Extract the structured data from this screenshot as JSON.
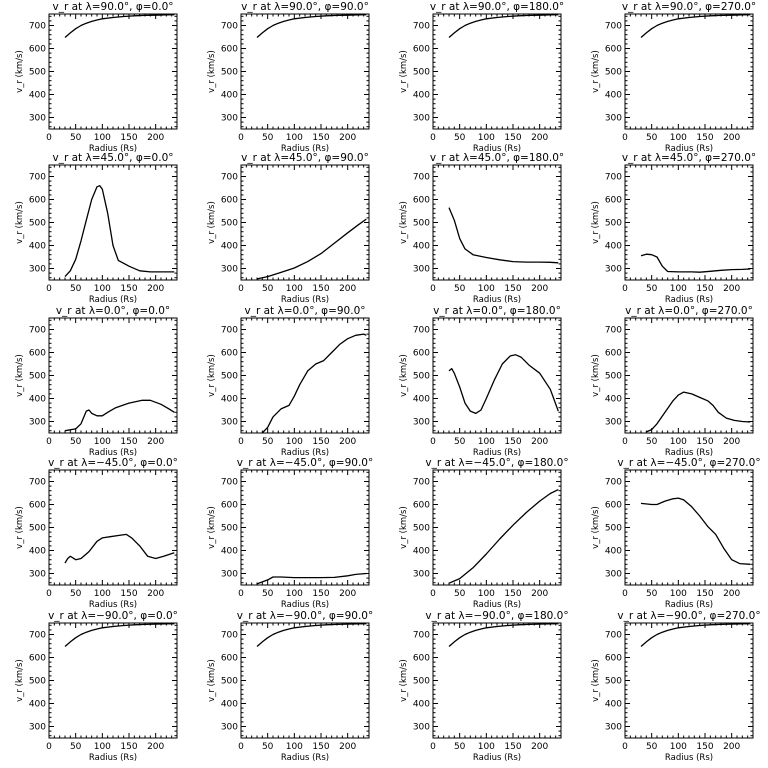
{
  "figure": {
    "layout": {
      "rows": 5,
      "cols": 4
    },
    "line_color": "#000000",
    "background": "#ffffff"
  },
  "chart_data": [
    {
      "type": "line",
      "title": "v_r at λ=90.0°, φ=0.0°",
      "xlabel": "Radius (Rs)",
      "ylabel": "v_r (km/s)",
      "xlim": [
        0,
        240
      ],
      "ylim": [
        250,
        750
      ],
      "xticks": [
        0,
        50,
        100,
        150,
        200
      ],
      "yticks": [
        300,
        400,
        500,
        600,
        700
      ],
      "x": [
        30,
        40,
        50,
        60,
        70,
        80,
        90,
        100,
        120,
        140,
        160,
        180,
        200,
        220,
        235
      ],
      "y": [
        648,
        668,
        686,
        700,
        710,
        718,
        724,
        729,
        735,
        739,
        742,
        744,
        745,
        746,
        747
      ]
    },
    {
      "type": "line",
      "title": "v_r at λ=90.0°, φ=90.0°",
      "xlabel": "Radius (Rs)",
      "ylabel": "v_r (km/s)",
      "xlim": [
        0,
        240
      ],
      "ylim": [
        250,
        750
      ],
      "xticks": [
        0,
        50,
        100,
        150,
        200
      ],
      "yticks": [
        300,
        400,
        500,
        600,
        700
      ],
      "x": [
        30,
        40,
        50,
        60,
        70,
        80,
        90,
        100,
        120,
        140,
        160,
        180,
        200,
        220,
        235
      ],
      "y": [
        648,
        668,
        686,
        700,
        710,
        718,
        724,
        729,
        735,
        739,
        742,
        744,
        745,
        746,
        747
      ]
    },
    {
      "type": "line",
      "title": "v_r at λ=90.0°, φ=180.0°",
      "xlabel": "Radius (Rs)",
      "ylabel": "v_r (km/s)",
      "xlim": [
        0,
        240
      ],
      "ylim": [
        250,
        750
      ],
      "xticks": [
        0,
        50,
        100,
        150,
        200
      ],
      "yticks": [
        300,
        400,
        500,
        600,
        700
      ],
      "x": [
        30,
        40,
        50,
        60,
        70,
        80,
        90,
        100,
        120,
        140,
        160,
        180,
        200,
        220,
        235
      ],
      "y": [
        648,
        668,
        686,
        700,
        710,
        718,
        724,
        729,
        735,
        739,
        742,
        744,
        745,
        746,
        747
      ]
    },
    {
      "type": "line",
      "title": "v_r at λ=90.0°, φ=270.0°",
      "xlabel": "Radius (Rs)",
      "ylabel": "v_r (km/s)",
      "xlim": [
        0,
        240
      ],
      "ylim": [
        250,
        750
      ],
      "xticks": [
        0,
        50,
        100,
        150,
        200
      ],
      "yticks": [
        300,
        400,
        500,
        600,
        700
      ],
      "x": [
        30,
        40,
        50,
        60,
        70,
        80,
        90,
        100,
        120,
        140,
        160,
        180,
        200,
        220,
        235
      ],
      "y": [
        648,
        668,
        686,
        700,
        710,
        718,
        724,
        729,
        735,
        739,
        742,
        744,
        745,
        746,
        747
      ]
    },
    {
      "type": "line",
      "title": "v_r at λ=45.0°, φ=0.0°",
      "xlabel": "Radius (Rs)",
      "ylabel": "v_r (km/s)",
      "xlim": [
        0,
        240
      ],
      "ylim": [
        250,
        750
      ],
      "xticks": [
        0,
        50,
        100,
        150,
        200
      ],
      "yticks": [
        300,
        400,
        500,
        600,
        700
      ],
      "x": [
        30,
        40,
        50,
        60,
        70,
        80,
        90,
        95,
        100,
        110,
        120,
        130,
        150,
        170,
        190,
        210,
        235
      ],
      "y": [
        265,
        290,
        340,
        420,
        510,
        600,
        655,
        660,
        645,
        540,
        400,
        335,
        310,
        290,
        285,
        285,
        285
      ]
    },
    {
      "type": "line",
      "title": "v_r at λ=45.0°, φ=90.0°",
      "xlabel": "Radius (Rs)",
      "ylabel": "v_r (km/s)",
      "xlim": [
        0,
        240
      ],
      "ylim": [
        250,
        750
      ],
      "xticks": [
        0,
        50,
        100,
        150,
        200
      ],
      "yticks": [
        300,
        400,
        500,
        600,
        700
      ],
      "x": [
        30,
        50,
        75,
        100,
        125,
        150,
        175,
        200,
        220,
        235
      ],
      "y": [
        255,
        265,
        283,
        302,
        330,
        365,
        410,
        455,
        490,
        515
      ]
    },
    {
      "type": "line",
      "title": "v_r at λ=45.0°, φ=180.0°",
      "xlabel": "Radius (Rs)",
      "ylabel": "v_r (km/s)",
      "xlim": [
        0,
        240
      ],
      "ylim": [
        250,
        750
      ],
      "xticks": [
        0,
        50,
        100,
        150,
        200
      ],
      "yticks": [
        300,
        400,
        500,
        600,
        700
      ],
      "x": [
        30,
        40,
        50,
        60,
        75,
        100,
        125,
        150,
        175,
        200,
        220,
        235
      ],
      "y": [
        565,
        510,
        430,
        385,
        360,
        348,
        338,
        330,
        328,
        328,
        327,
        325
      ]
    },
    {
      "type": "line",
      "title": "v_r at λ=45.0°, φ=270.0°",
      "xlabel": "Radius (Rs)",
      "ylabel": "v_r (km/s)",
      "xlim": [
        0,
        240
      ],
      "ylim": [
        250,
        750
      ],
      "xticks": [
        0,
        50,
        100,
        150,
        200
      ],
      "yticks": [
        300,
        400,
        500,
        600,
        700
      ],
      "x": [
        30,
        40,
        50,
        60,
        70,
        80,
        100,
        125,
        140,
        160,
        180,
        200,
        220,
        235
      ],
      "y": [
        355,
        362,
        360,
        350,
        310,
        287,
        285,
        285,
        284,
        288,
        292,
        295,
        296,
        298
      ]
    },
    {
      "type": "line",
      "title": "v_r at λ=0.0°, φ=0.0°",
      "xlabel": "Radius (Rs)",
      "ylabel": "v_r (km/s)",
      "xlim": [
        0,
        240
      ],
      "ylim": [
        250,
        750
      ],
      "xticks": [
        0,
        50,
        100,
        150,
        200
      ],
      "yticks": [
        300,
        400,
        500,
        600,
        700
      ],
      "x": [
        30,
        50,
        60,
        70,
        75,
        80,
        90,
        100,
        110,
        125,
        150,
        175,
        190,
        210,
        225,
        235
      ],
      "y": [
        260,
        268,
        290,
        345,
        350,
        335,
        325,
        325,
        340,
        360,
        380,
        392,
        392,
        375,
        355,
        340
      ]
    },
    {
      "type": "line",
      "title": "v_r at λ=0.0°, φ=90.0°",
      "xlabel": "Radius (Rs)",
      "ylabel": "v_r (km/s)",
      "xlim": [
        0,
        240
      ],
      "ylim": [
        250,
        750
      ],
      "xticks": [
        0,
        50,
        100,
        150,
        200
      ],
      "yticks": [
        300,
        400,
        500,
        600,
        700
      ],
      "x": [
        40,
        50,
        60,
        75,
        90,
        100,
        110,
        125,
        140,
        155,
        170,
        185,
        200,
        215,
        230,
        235
      ],
      "y": [
        250,
        275,
        320,
        355,
        370,
        410,
        460,
        520,
        550,
        565,
        600,
        635,
        660,
        675,
        680,
        675
      ]
    },
    {
      "type": "line",
      "title": "v_r at λ=0.0°, φ=180.0°",
      "xlabel": "Radius (Rs)",
      "ylabel": "v_r (km/s)",
      "xlim": [
        0,
        240
      ],
      "ylim": [
        250,
        750
      ],
      "xticks": [
        0,
        50,
        100,
        150,
        200
      ],
      "yticks": [
        300,
        400,
        500,
        600,
        700
      ],
      "x": [
        30,
        35,
        40,
        50,
        60,
        70,
        80,
        90,
        100,
        115,
        130,
        145,
        155,
        165,
        180,
        200,
        220,
        235
      ],
      "y": [
        520,
        530,
        510,
        450,
        380,
        345,
        335,
        350,
        400,
        480,
        550,
        585,
        590,
        580,
        545,
        510,
        440,
        345
      ]
    },
    {
      "type": "line",
      "title": "v_r at λ=0.0°, φ=270.0°",
      "xlabel": "Radius (Rs)",
      "ylabel": "v_r (km/s)",
      "xlim": [
        0,
        240
      ],
      "ylim": [
        250,
        750
      ],
      "xticks": [
        0,
        50,
        100,
        150,
        200
      ],
      "yticks": [
        300,
        400,
        500,
        600,
        700
      ],
      "x": [
        40,
        50,
        60,
        75,
        90,
        100,
        110,
        125,
        140,
        155,
        165,
        175,
        190,
        205,
        220,
        235
      ],
      "y": [
        255,
        265,
        290,
        340,
        390,
        415,
        428,
        420,
        405,
        390,
        370,
        340,
        315,
        305,
        300,
        298
      ]
    },
    {
      "type": "line",
      "title": "v_r at λ=−45.0°, φ=0.0°",
      "xlabel": "Radius (Rs)",
      "ylabel": "v_r (km/s)",
      "xlim": [
        0,
        240
      ],
      "ylim": [
        250,
        750
      ],
      "xticks": [
        0,
        50,
        100,
        150,
        200
      ],
      "yticks": [
        300,
        400,
        500,
        600,
        700
      ],
      "x": [
        30,
        35,
        40,
        45,
        50,
        60,
        75,
        90,
        100,
        115,
        130,
        145,
        155,
        170,
        185,
        200,
        215,
        235
      ],
      "y": [
        345,
        365,
        375,
        368,
        360,
        365,
        395,
        440,
        455,
        460,
        465,
        470,
        455,
        420,
        375,
        365,
        375,
        390
      ]
    },
    {
      "type": "line",
      "title": "v_r at λ=−45.0°, φ=90.0°",
      "xlabel": "Radius (Rs)",
      "ylabel": "v_r (km/s)",
      "xlim": [
        0,
        240
      ],
      "ylim": [
        250,
        750
      ],
      "xticks": [
        0,
        50,
        100,
        150,
        200
      ],
      "yticks": [
        300,
        400,
        500,
        600,
        700
      ],
      "x": [
        30,
        50,
        60,
        75,
        100,
        125,
        150,
        175,
        200,
        215,
        235
      ],
      "y": [
        255,
        272,
        285,
        285,
        282,
        282,
        282,
        283,
        290,
        296,
        300
      ]
    },
    {
      "type": "line",
      "title": "v_r at λ=−45.0°, φ=180.0°",
      "xlabel": "Radius (Rs)",
      "ylabel": "v_r (km/s)",
      "xlim": [
        0,
        240
      ],
      "ylim": [
        250,
        750
      ],
      "xticks": [
        0,
        50,
        100,
        150,
        200
      ],
      "yticks": [
        300,
        400,
        500,
        600,
        700
      ],
      "x": [
        30,
        50,
        75,
        100,
        125,
        150,
        175,
        200,
        220,
        235
      ],
      "y": [
        258,
        278,
        325,
        385,
        450,
        510,
        565,
        615,
        648,
        665
      ]
    },
    {
      "type": "line",
      "title": "v_r at λ=−45.0°, φ=270.0°",
      "xlabel": "Radius (Rs)",
      "ylabel": "v_r (km/s)",
      "xlim": [
        0,
        240
      ],
      "ylim": [
        250,
        750
      ],
      "xticks": [
        0,
        50,
        100,
        150,
        200
      ],
      "yticks": [
        300,
        400,
        500,
        600,
        700
      ],
      "x": [
        30,
        50,
        60,
        75,
        90,
        100,
        110,
        125,
        140,
        155,
        170,
        185,
        200,
        215,
        235
      ],
      "y": [
        605,
        600,
        600,
        615,
        625,
        628,
        620,
        590,
        550,
        505,
        470,
        410,
        360,
        343,
        340
      ]
    },
    {
      "type": "line",
      "title": "v_r at λ=−90.0°, φ=0.0°",
      "xlabel": "Radius (Rs)",
      "ylabel": "v_r (km/s)",
      "xlim": [
        0,
        240
      ],
      "ylim": [
        250,
        750
      ],
      "xticks": [
        0,
        50,
        100,
        150,
        200
      ],
      "yticks": [
        300,
        400,
        500,
        600,
        700
      ],
      "x": [
        30,
        40,
        50,
        60,
        70,
        80,
        90,
        100,
        120,
        140,
        160,
        180,
        200,
        220,
        235
      ],
      "y": [
        648,
        668,
        686,
        700,
        710,
        718,
        724,
        729,
        735,
        739,
        742,
        744,
        745,
        746,
        747
      ]
    },
    {
      "type": "line",
      "title": "v_r at λ=−90.0°, φ=90.0°",
      "xlabel": "Radius (Rs)",
      "ylabel": "v_r (km/s)",
      "xlim": [
        0,
        240
      ],
      "ylim": [
        250,
        750
      ],
      "xticks": [
        0,
        50,
        100,
        150,
        200
      ],
      "yticks": [
        300,
        400,
        500,
        600,
        700
      ],
      "x": [
        30,
        40,
        50,
        60,
        70,
        80,
        90,
        100,
        120,
        140,
        160,
        180,
        200,
        220,
        235
      ],
      "y": [
        648,
        668,
        686,
        700,
        710,
        718,
        724,
        729,
        735,
        739,
        742,
        744,
        745,
        746,
        747
      ]
    },
    {
      "type": "line",
      "title": "v_r at λ=−90.0°, φ=180.0°",
      "xlabel": "Radius (Rs)",
      "ylabel": "v_r (km/s)",
      "xlim": [
        0,
        240
      ],
      "ylim": [
        250,
        750
      ],
      "xticks": [
        0,
        50,
        100,
        150,
        200
      ],
      "yticks": [
        300,
        400,
        500,
        600,
        700
      ],
      "x": [
        30,
        40,
        50,
        60,
        70,
        80,
        90,
        100,
        120,
        140,
        160,
        180,
        200,
        220,
        235
      ],
      "y": [
        648,
        668,
        686,
        700,
        710,
        718,
        724,
        729,
        735,
        739,
        742,
        744,
        745,
        746,
        747
      ]
    },
    {
      "type": "line",
      "title": "v_r at λ=−90.0°, φ=270.0°",
      "xlabel": "Radius (Rs)",
      "ylabel": "v_r (km/s)",
      "xlim": [
        0,
        240
      ],
      "ylim": [
        250,
        750
      ],
      "xticks": [
        0,
        50,
        100,
        150,
        200
      ],
      "yticks": [
        300,
        400,
        500,
        600,
        700
      ],
      "x": [
        30,
        40,
        50,
        60,
        70,
        80,
        90,
        100,
        120,
        140,
        160,
        180,
        200,
        220,
        235
      ],
      "y": [
        648,
        668,
        686,
        700,
        710,
        718,
        724,
        729,
        735,
        739,
        742,
        744,
        745,
        746,
        747
      ]
    }
  ]
}
